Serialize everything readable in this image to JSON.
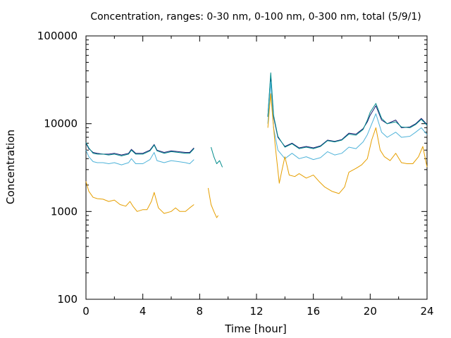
{
  "chart_data": {
    "type": "line",
    "title": "Concentration, ranges: 0-30 nm, 0-100 nm, 0-300 nm, total (5/9/1)",
    "xlabel": "Time [hour]",
    "ylabel": "Concentration",
    "xlim": [
      0,
      24
    ],
    "ylim": [
      100,
      100000
    ],
    "yscale": "log",
    "grid": false,
    "legend": "none",
    "x_ticks": [
      0,
      4,
      8,
      12,
      16,
      20,
      24
    ],
    "x_tick_labels": [
      "0",
      "4",
      "8",
      "12",
      "16",
      "20",
      "24"
    ],
    "y_ticks": [
      100,
      1000,
      10000,
      100000
    ],
    "y_tick_labels": [
      "100",
      "1000",
      "10000",
      "100000"
    ],
    "series": [
      {
        "color": "#191970",
        "x": [
          0,
          0.2,
          0.5,
          0.8,
          1.2,
          1.6,
          2.0,
          2.5,
          3.0,
          3.2,
          3.5,
          4.0,
          4.5,
          4.8,
          5.0,
          5.5,
          6.0,
          6.5,
          7.0,
          7.3,
          7.6,
          null,
          12.8,
          13.0,
          13.2,
          13.5,
          14.0,
          14.5,
          15.0,
          15.5,
          16.0,
          16.5,
          17.0,
          17.5,
          18.0,
          18.5,
          19.0,
          19.5,
          19.8,
          20.0,
          20.4,
          20.8,
          21.2,
          21.8,
          22.2,
          22.8,
          23.2,
          23.6,
          24.0
        ],
        "y": [
          6000,
          5200,
          4700,
          4600,
          4500,
          4500,
          4600,
          4400,
          4600,
          5100,
          4600,
          4600,
          5000,
          5800,
          5000,
          4700,
          4900,
          4800,
          4700,
          4700,
          5300,
          null,
          12000,
          35000,
          12000,
          7000,
          5500,
          6000,
          5300,
          5500,
          5300,
          5600,
          6500,
          6300,
          6600,
          7800,
          7600,
          8800,
          10500,
          12500,
          16000,
          11000,
          10000,
          11000,
          9000,
          9200,
          10000,
          11500,
          9800
        ]
      },
      {
        "color": "#008b8b",
        "x": [
          0,
          0.2,
          0.5,
          0.8,
          1.2,
          1.6,
          2.0,
          2.5,
          3.0,
          3.2,
          3.5,
          4.0,
          4.5,
          4.8,
          5.0,
          5.5,
          6.0,
          6.5,
          7.0,
          7.3,
          7.6,
          null,
          8.8,
          9.0,
          9.2,
          9.4,
          9.6,
          null,
          12.8,
          13.0,
          13.2,
          13.5,
          14.0,
          14.5,
          15.0,
          15.5,
          16.0,
          16.5,
          17.0,
          17.5,
          18.0,
          18.5,
          19.0,
          19.5,
          19.8,
          20.0,
          20.4,
          20.8,
          21.2,
          21.8,
          22.2,
          22.8,
          23.2,
          23.6,
          24.0
        ],
        "y": [
          6100,
          5300,
          4600,
          4500,
          4500,
          4400,
          4500,
          4300,
          4500,
          5000,
          4500,
          4500,
          4900,
          5700,
          4900,
          4600,
          4800,
          4700,
          4600,
          4600,
          5200,
          null,
          5400,
          4200,
          3500,
          3800,
          3200,
          null,
          12000,
          38000,
          12500,
          7200,
          5400,
          5900,
          5200,
          5400,
          5200,
          5500,
          6400,
          6200,
          6500,
          7600,
          7400,
          8600,
          11000,
          13500,
          17000,
          11500,
          10000,
          10500,
          9200,
          9000,
          9800,
          11200,
          9600
        ]
      },
      {
        "color": "#4fb3d9",
        "x": [
          0,
          0.2,
          0.5,
          0.8,
          1.2,
          1.6,
          2.0,
          2.5,
          3.0,
          3.2,
          3.5,
          4.0,
          4.5,
          4.8,
          5.0,
          5.5,
          6.0,
          6.5,
          7.0,
          7.3,
          7.6,
          null,
          12.8,
          13.0,
          13.2,
          13.5,
          14.0,
          14.5,
          15.0,
          15.5,
          16.0,
          16.5,
          17.0,
          17.5,
          18.0,
          18.5,
          19.0,
          19.5,
          19.8,
          20.0,
          20.4,
          20.8,
          21.2,
          21.8,
          22.2,
          22.8,
          23.2,
          23.6,
          24.0
        ],
        "y": [
          5000,
          4200,
          3700,
          3600,
          3600,
          3500,
          3600,
          3400,
          3600,
          4000,
          3500,
          3500,
          3900,
          4700,
          3800,
          3600,
          3800,
          3700,
          3600,
          3500,
          3900,
          null,
          10000,
          30000,
          9000,
          5000,
          4000,
          4600,
          4000,
          4200,
          3900,
          4100,
          4800,
          4400,
          4600,
          5400,
          5200,
          6200,
          7500,
          9000,
          13000,
          8000,
          7000,
          8000,
          7000,
          7200,
          8000,
          9000,
          7500
        ]
      },
      {
        "color": "#e69f00",
        "x": [
          0,
          0.2,
          0.5,
          0.8,
          1.2,
          1.6,
          2.0,
          2.4,
          2.8,
          3.1,
          3.3,
          3.6,
          4.0,
          4.3,
          4.6,
          4.8,
          5.1,
          5.5,
          6.0,
          6.3,
          6.6,
          7.0,
          7.3,
          7.6,
          null,
          8.6,
          8.8,
          9.0,
          9.2,
          9.3,
          null,
          12.8,
          13.0,
          13.1,
          13.3,
          13.6,
          13.8,
          14.0,
          14.3,
          14.7,
          15.0,
          15.5,
          16.0,
          16.4,
          16.8,
          17.3,
          17.8,
          18.2,
          18.5,
          19.0,
          19.4,
          19.8,
          20.1,
          20.4,
          20.7,
          21.0,
          21.4,
          21.8,
          22.2,
          22.6,
          23.0,
          23.4,
          23.7,
          24.0
        ],
        "y": [
          2200,
          1700,
          1450,
          1400,
          1380,
          1300,
          1350,
          1200,
          1150,
          1300,
          1150,
          1000,
          1050,
          1050,
          1300,
          1650,
          1100,
          950,
          1000,
          1100,
          1000,
          1000,
          1100,
          1200,
          null,
          1850,
          1200,
          1000,
          850,
          900,
          null,
          9000,
          22000,
          14000,
          6000,
          2100,
          3000,
          4200,
          2600,
          2500,
          2700,
          2400,
          2600,
          2200,
          1900,
          1700,
          1600,
          1900,
          2800,
          3100,
          3400,
          4000,
          6500,
          9000,
          5000,
          4200,
          3800,
          4600,
          3600,
          3500,
          3500,
          4200,
          5500,
          3200
        ]
      }
    ]
  }
}
